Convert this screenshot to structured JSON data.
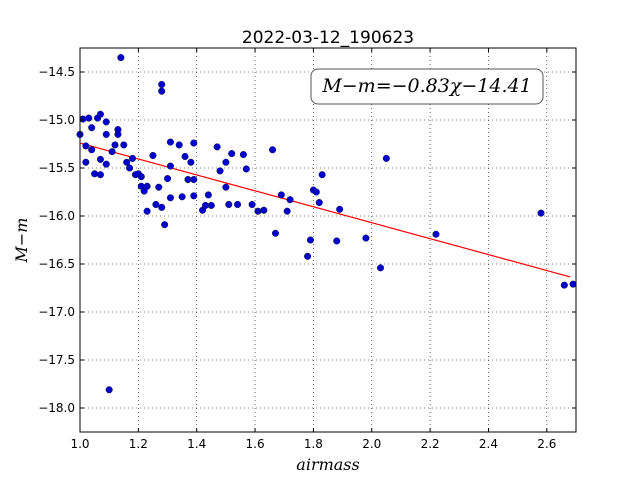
{
  "chart_data": {
    "type": "scatter",
    "title": "2022-03-12_190623",
    "xlabel": "airmass",
    "ylabel": "M−m",
    "xlim": [
      1.0,
      2.7
    ],
    "ylim": [
      -18.25,
      -14.25
    ],
    "x_ticks": [
      1.0,
      1.2,
      1.4,
      1.6,
      1.8,
      2.0,
      2.2,
      2.4,
      2.6
    ],
    "x_tick_labels": [
      "1.0",
      "1.2",
      "1.4",
      "1.6",
      "1.8",
      "2.0",
      "2.2",
      "2.4",
      "2.6"
    ],
    "y_ticks": [
      -14.5,
      -15.0,
      -15.5,
      -16.0,
      -16.5,
      -17.0,
      -17.5,
      -18.0
    ],
    "y_tick_labels": [
      "−14.5",
      "−15.0",
      "−15.5",
      "−16.0",
      "−16.5",
      "−17.0",
      "−17.5",
      "−18.0"
    ],
    "grid": true,
    "annotation": "M−m=−0.83χ−14.41",
    "annotation_position": "top-right",
    "fit_line": {
      "slope": -0.83,
      "intercept": -14.41,
      "x_range": [
        1.0,
        2.68
      ],
      "color": "#ff0000"
    },
    "point_color": "#0000cc",
    "points": [
      [
        1.0,
        -15.15
      ],
      [
        1.01,
        -14.99
      ],
      [
        1.02,
        -15.27
      ],
      [
        1.02,
        -15.44
      ],
      [
        1.03,
        -14.98
      ],
      [
        1.04,
        -15.08
      ],
      [
        1.04,
        -15.31
      ],
      [
        1.05,
        -15.56
      ],
      [
        1.06,
        -14.98
      ],
      [
        1.07,
        -14.94
      ],
      [
        1.07,
        -15.41
      ],
      [
        1.07,
        -15.57
      ],
      [
        1.09,
        -15.46
      ],
      [
        1.09,
        -15.02
      ],
      [
        1.09,
        -15.15
      ],
      [
        1.1,
        -17.81
      ],
      [
        1.11,
        -15.33
      ],
      [
        1.12,
        -15.26
      ],
      [
        1.13,
        -15.1
      ],
      [
        1.13,
        -15.15
      ],
      [
        1.14,
        -14.35
      ],
      [
        1.15,
        -15.26
      ],
      [
        1.16,
        -15.44
      ],
      [
        1.17,
        -15.5
      ],
      [
        1.18,
        -15.4
      ],
      [
        1.19,
        -15.57
      ],
      [
        1.2,
        -15.56
      ],
      [
        1.21,
        -15.59
      ],
      [
        1.21,
        -15.69
      ],
      [
        1.22,
        -15.74
      ],
      [
        1.23,
        -15.69
      ],
      [
        1.23,
        -15.95
      ],
      [
        1.25,
        -15.37
      ],
      [
        1.26,
        -15.88
      ],
      [
        1.27,
        -15.7
      ],
      [
        1.28,
        -15.91
      ],
      [
        1.28,
        -14.63
      ],
      [
        1.28,
        -14.7
      ],
      [
        1.29,
        -16.09
      ],
      [
        1.3,
        -15.61
      ],
      [
        1.31,
        -15.81
      ],
      [
        1.31,
        -15.23
      ],
      [
        1.31,
        -15.48
      ],
      [
        1.34,
        -15.26
      ],
      [
        1.35,
        -15.8
      ],
      [
        1.36,
        -15.38
      ],
      [
        1.37,
        -15.62
      ],
      [
        1.38,
        -15.44
      ],
      [
        1.39,
        -15.79
      ],
      [
        1.39,
        -15.62
      ],
      [
        1.39,
        -15.24
      ],
      [
        1.42,
        -15.94
      ],
      [
        1.43,
        -15.89
      ],
      [
        1.44,
        -15.78
      ],
      [
        1.45,
        -15.89
      ],
      [
        1.47,
        -15.28
      ],
      [
        1.48,
        -15.53
      ],
      [
        1.5,
        -15.7
      ],
      [
        1.5,
        -15.44
      ],
      [
        1.51,
        -15.88
      ],
      [
        1.52,
        -15.35
      ],
      [
        1.54,
        -15.88
      ],
      [
        1.56,
        -15.36
      ],
      [
        1.57,
        -15.51
      ],
      [
        1.59,
        -15.88
      ],
      [
        1.61,
        -15.95
      ],
      [
        1.63,
        -15.94
      ],
      [
        1.66,
        -15.31
      ],
      [
        1.67,
        -16.18
      ],
      [
        1.69,
        -15.78
      ],
      [
        1.71,
        -15.95
      ],
      [
        1.72,
        -15.83
      ],
      [
        1.78,
        -16.42
      ],
      [
        1.79,
        -16.25
      ],
      [
        1.8,
        -15.73
      ],
      [
        1.81,
        -15.75
      ],
      [
        1.82,
        -15.86
      ],
      [
        1.83,
        -15.57
      ],
      [
        1.88,
        -16.26
      ],
      [
        1.89,
        -15.93
      ],
      [
        1.98,
        -16.23
      ],
      [
        2.03,
        -16.54
      ],
      [
        2.05,
        -15.4
      ],
      [
        2.22,
        -16.19
      ],
      [
        2.58,
        -15.97
      ],
      [
        2.66,
        -16.72
      ],
      [
        2.69,
        -16.71
      ]
    ]
  }
}
